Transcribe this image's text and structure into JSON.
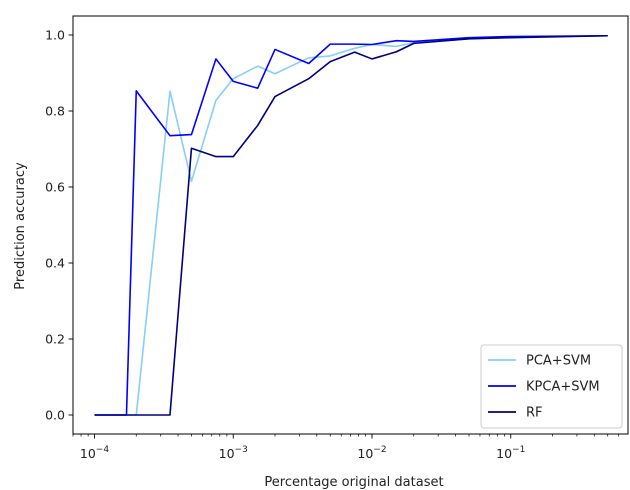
{
  "chart_data": {
    "type": "line",
    "title": "",
    "xlabel": "Percentage original dataset",
    "ylabel": "Prediction accuracy",
    "xscale": "log",
    "xlim": [
      7e-05,
      0.7
    ],
    "ylim": [
      -0.05,
      1.05
    ],
    "xticks": [
      {
        "value": 0.0001,
        "base": "10",
        "exp": "−4"
      },
      {
        "value": 0.001,
        "base": "10",
        "exp": "−3"
      },
      {
        "value": 0.01,
        "base": "10",
        "exp": "−2"
      },
      {
        "value": 0.1,
        "base": "10",
        "exp": "−1"
      }
    ],
    "yticks": [
      "0.0",
      "0.2",
      "0.4",
      "0.6",
      "0.8",
      "1.0"
    ],
    "grid": false,
    "legend_position": "lower-right",
    "series": [
      {
        "name": "PCA+SVM",
        "color": "#87cefa",
        "points": [
          [
            0.0001,
            0.0
          ],
          [
            0.00017,
            0.0
          ],
          [
            0.0002,
            0.0
          ],
          [
            0.00035,
            0.852
          ],
          [
            0.0005,
            0.615
          ],
          [
            0.00075,
            0.828
          ],
          [
            0.001,
            0.885
          ],
          [
            0.0015,
            0.918
          ],
          [
            0.002,
            0.898
          ],
          [
            0.0035,
            0.94
          ],
          [
            0.005,
            0.945
          ],
          [
            0.0075,
            0.965
          ],
          [
            0.01,
            0.975
          ],
          [
            0.015,
            0.97
          ],
          [
            0.02,
            0.98
          ],
          [
            0.05,
            0.99
          ],
          [
            0.1,
            0.994
          ],
          [
            0.5,
            0.998
          ]
        ]
      },
      {
        "name": "KPCA+SVM",
        "color": "#0000ff",
        "points": [
          [
            0.0001,
            0.0
          ],
          [
            0.00017,
            0.0
          ],
          [
            0.0002,
            0.853
          ],
          [
            0.00035,
            0.735
          ],
          [
            0.0005,
            0.738
          ],
          [
            0.00075,
            0.937
          ],
          [
            0.001,
            0.878
          ],
          [
            0.0015,
            0.86
          ],
          [
            0.002,
            0.962
          ],
          [
            0.0035,
            0.925
          ],
          [
            0.005,
            0.976
          ],
          [
            0.0075,
            0.976
          ],
          [
            0.01,
            0.975
          ],
          [
            0.015,
            0.985
          ],
          [
            0.02,
            0.983
          ],
          [
            0.05,
            0.993
          ],
          [
            0.1,
            0.996
          ],
          [
            0.5,
            0.998
          ]
        ]
      },
      {
        "name": "RF",
        "color": "#000080",
        "points": [
          [
            0.0001,
            0.0
          ],
          [
            0.00017,
            0.0
          ],
          [
            0.0002,
            0.0
          ],
          [
            0.00035,
            0.0
          ],
          [
            0.0005,
            0.702
          ],
          [
            0.00075,
            0.68
          ],
          [
            0.001,
            0.68
          ],
          [
            0.0015,
            0.762
          ],
          [
            0.002,
            0.838
          ],
          [
            0.0035,
            0.885
          ],
          [
            0.005,
            0.93
          ],
          [
            0.0075,
            0.955
          ],
          [
            0.01,
            0.937
          ],
          [
            0.015,
            0.956
          ],
          [
            0.02,
            0.978
          ],
          [
            0.05,
            0.99
          ],
          [
            0.1,
            0.993
          ],
          [
            0.5,
            0.998
          ]
        ]
      }
    ]
  }
}
